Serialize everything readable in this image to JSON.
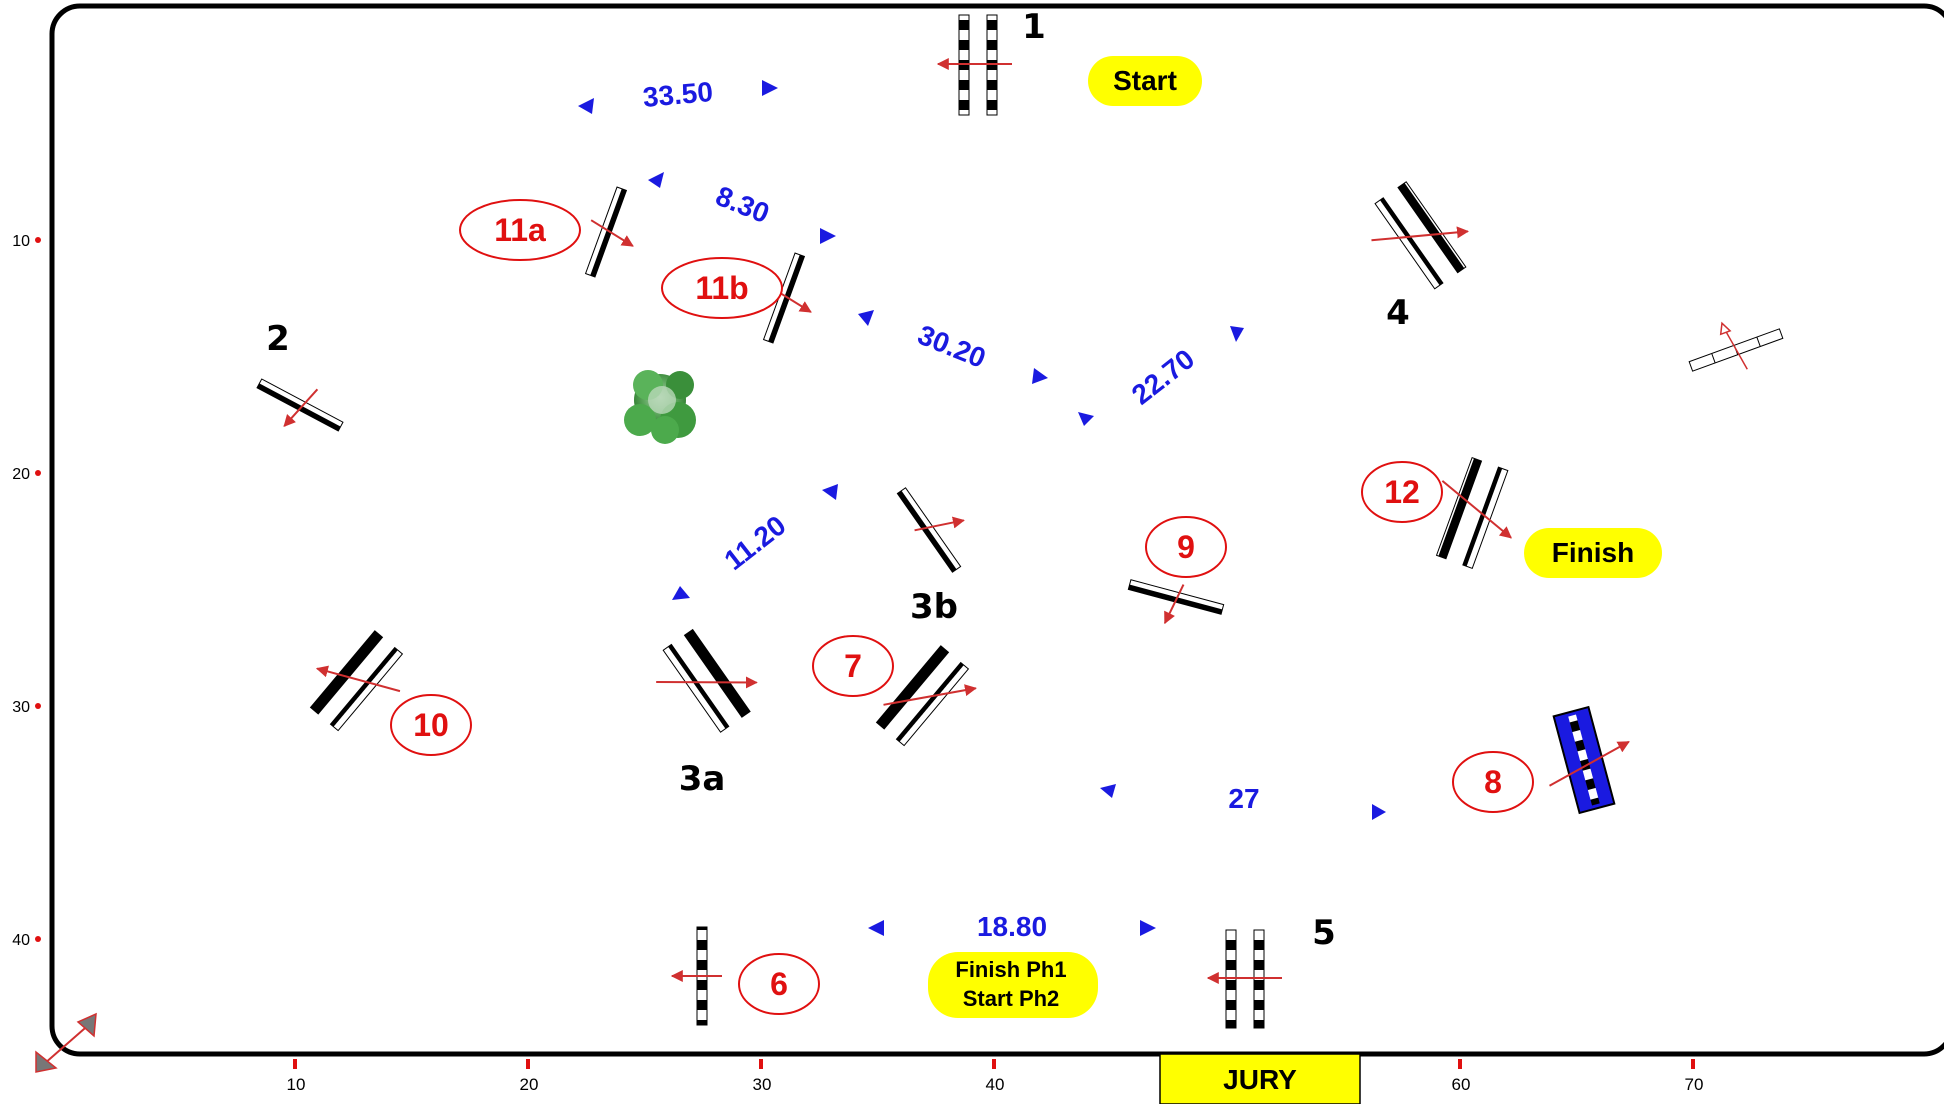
{
  "arena": {
    "y_axis_ticks": [
      "10",
      "20",
      "30",
      "40"
    ],
    "x_axis_ticks": [
      "10",
      "20",
      "30",
      "40",
      "60",
      "70"
    ],
    "jury_label": "JURY"
  },
  "fence_labels_phase1": [
    "1",
    "2",
    "3a",
    "3b",
    "4",
    "5"
  ],
  "fence_labels_phase2": [
    "11a",
    "11b",
    "12",
    "9",
    "7",
    "10",
    "8",
    "6"
  ],
  "distances": [
    "33.50",
    "8.30",
    "30.20",
    "22.70",
    "11.20",
    "27",
    "18.80"
  ],
  "badges": {
    "start": "Start",
    "finish": "Finish",
    "mid_line1": "Finish Ph1",
    "mid_line2": "Start Ph2"
  },
  "colors": {
    "course_number": "#e01010",
    "distance": "#1010e0",
    "badge_fill": "#ffff00",
    "water_fill": "#1a1ae0",
    "direction_arrow": "#d03030",
    "bush": "#4caa4c"
  }
}
